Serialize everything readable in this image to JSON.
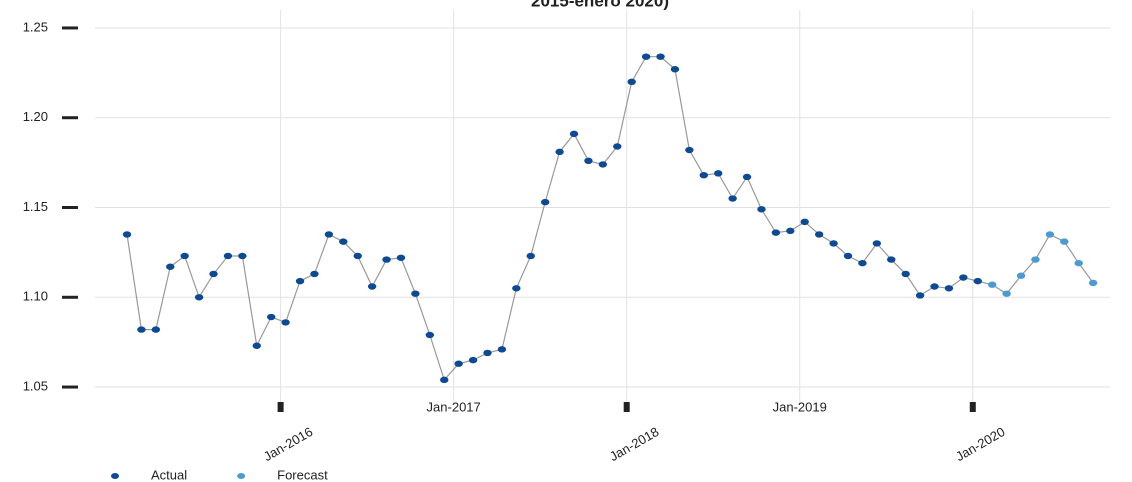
{
  "chart_data": {
    "type": "line",
    "title": "2015-enero 2020)",
    "categories": [
      null,
      null,
      null,
      null,
      null,
      null,
      null,
      null,
      null,
      null,
      null,
      "Jan-2016",
      null,
      null,
      null,
      null,
      null,
      null,
      null,
      null,
      null,
      null,
      null,
      "Jan-2017",
      null,
      null,
      null,
      null,
      null,
      null,
      null,
      null,
      null,
      null,
      null,
      "Jan-2018",
      null,
      null,
      null,
      null,
      null,
      null,
      null,
      null,
      null,
      null,
      null,
      "Jan-2019",
      null,
      null,
      null,
      null,
      null,
      null,
      null,
      null,
      null,
      null,
      null,
      "Jan-2020",
      null,
      null,
      null,
      null,
      null,
      null,
      null,
      null
    ],
    "series": [
      {
        "name": "Actual",
        "color": "#0d4a96",
        "values": [
          1.135,
          1.082,
          1.082,
          1.117,
          1.123,
          1.1,
          1.113,
          1.123,
          1.123,
          1.073,
          1.089,
          1.086,
          1.109,
          1.113,
          1.135,
          1.131,
          1.123,
          1.106,
          1.121,
          1.122,
          1.102,
          1.079,
          1.054,
          1.063,
          1.065,
          1.069,
          1.071,
          1.105,
          1.123,
          1.153,
          1.181,
          1.191,
          1.176,
          1.174,
          1.184,
          1.22,
          1.234,
          1.234,
          1.227,
          1.182,
          1.168,
          1.169,
          1.155,
          1.167,
          1.149,
          1.136,
          1.137,
          1.142,
          1.135,
          1.13,
          1.123,
          1.119,
          1.13,
          1.121,
          1.113,
          1.101,
          1.106,
          1.105,
          1.111,
          1.109,
          null,
          null,
          null,
          null,
          null,
          null,
          null,
          null
        ]
      },
      {
        "name": "Forecast",
        "color": "#4a9bd1",
        "values": [
          null,
          null,
          null,
          null,
          null,
          null,
          null,
          null,
          null,
          null,
          null,
          null,
          null,
          null,
          null,
          null,
          null,
          null,
          null,
          null,
          null,
          null,
          null,
          null,
          null,
          null,
          null,
          null,
          null,
          null,
          null,
          null,
          null,
          null,
          null,
          null,
          null,
          null,
          null,
          null,
          null,
          null,
          null,
          null,
          null,
          null,
          null,
          null,
          null,
          null,
          null,
          null,
          null,
          null,
          null,
          null,
          null,
          null,
          null,
          null,
          1.107,
          1.102,
          1.112,
          1.121,
          1.135,
          1.131,
          1.119,
          1.108
        ]
      }
    ],
    "line_color": "#999999",
    "ylim": [
      1.04,
      1.26
    ],
    "yticks": [
      1.05,
      {
        "value": 1.1,
        "label": "1.10"
      },
      1.15,
      {
        "value": 1.2,
        "label": "1.20"
      },
      1.25
    ],
    "grid": true,
    "legend": "bottom-left"
  }
}
